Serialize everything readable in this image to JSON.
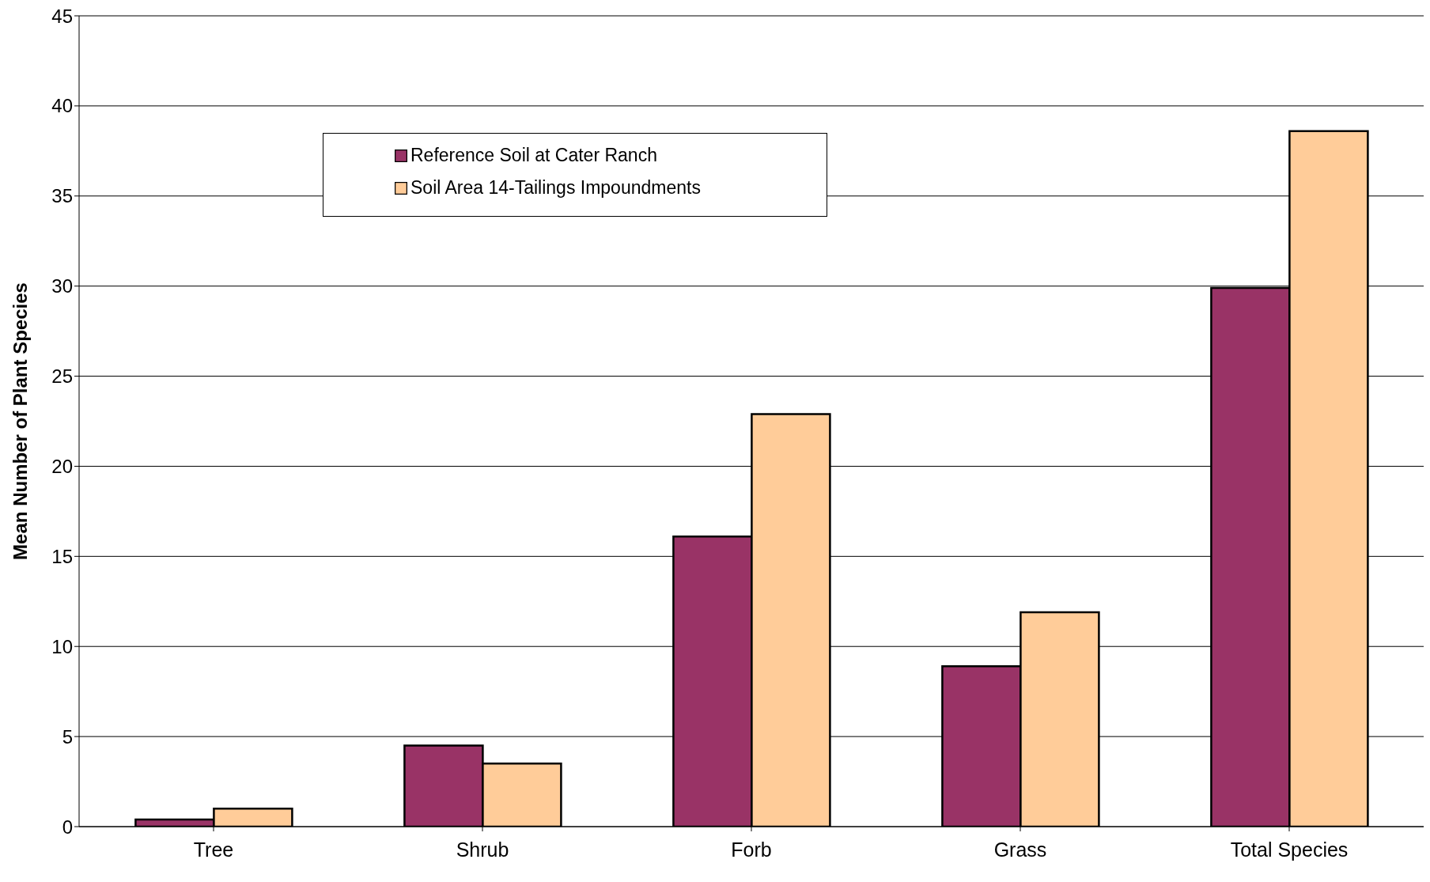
{
  "chart_data": {
    "type": "bar",
    "ylabel": "Mean Number of Plant Species",
    "categories": [
      "Tree",
      "Shrub",
      "Forb",
      "Grass",
      "Total Species"
    ],
    "series": [
      {
        "name": "Reference Soil at Cater Ranch",
        "color": "#993366",
        "values": [
          0.4,
          4.5,
          16.1,
          8.9,
          29.9
        ]
      },
      {
        "name": "Soil Area 14-Tailings Impoundments",
        "color": "#ffcc99",
        "values": [
          1.0,
          3.5,
          22.9,
          11.9,
          38.6
        ]
      }
    ],
    "ylim": [
      0,
      45
    ],
    "yticks": [
      0,
      5,
      10,
      15,
      20,
      25,
      30,
      35,
      40,
      45
    ],
    "grid": "y",
    "legend": "top"
  }
}
